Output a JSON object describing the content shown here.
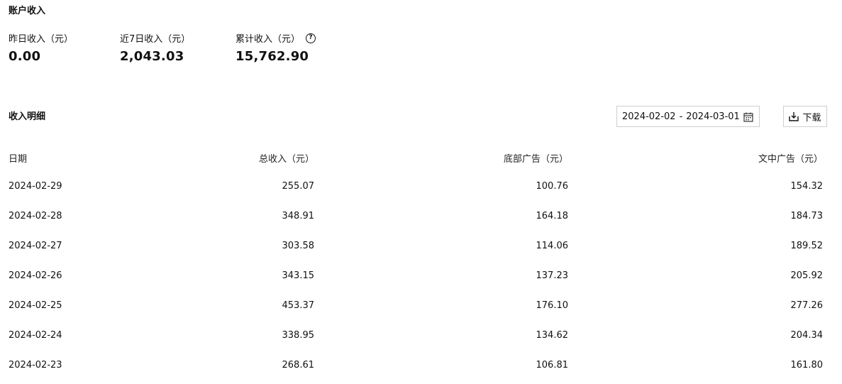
{
  "account": {
    "title": "账户收入",
    "stats": [
      {
        "label": "昨日收入（元）",
        "value": "0.00"
      },
      {
        "label": "近7日收入（元）",
        "value": "2,043.03"
      },
      {
        "label": "累计收入（元）",
        "value": "15,762.90",
        "help_icon": "question-circle-icon"
      }
    ]
  },
  "detail": {
    "title": "收入明细",
    "date_range": {
      "start": "2024-02-02",
      "separator": "-",
      "end": "2024-03-01",
      "icon": "calendar-icon"
    },
    "download": {
      "label": "下载",
      "icon": "download-icon"
    }
  },
  "table": {
    "headers": [
      "日期",
      "总收入（元）",
      "底部广告（元）",
      "文中广告（元）"
    ],
    "rows": [
      [
        "2024-02-29",
        "255.07",
        "100.76",
        "154.32"
      ],
      [
        "2024-02-28",
        "348.91",
        "164.18",
        "184.73"
      ],
      [
        "2024-02-27",
        "303.58",
        "114.06",
        "189.52"
      ],
      [
        "2024-02-26",
        "343.15",
        "137.23",
        "205.92"
      ],
      [
        "2024-02-25",
        "453.37",
        "176.10",
        "277.26"
      ],
      [
        "2024-02-24",
        "338.95",
        "134.62",
        "204.34"
      ],
      [
        "2024-02-23",
        "268.61",
        "106.81",
        "161.80"
      ]
    ]
  }
}
